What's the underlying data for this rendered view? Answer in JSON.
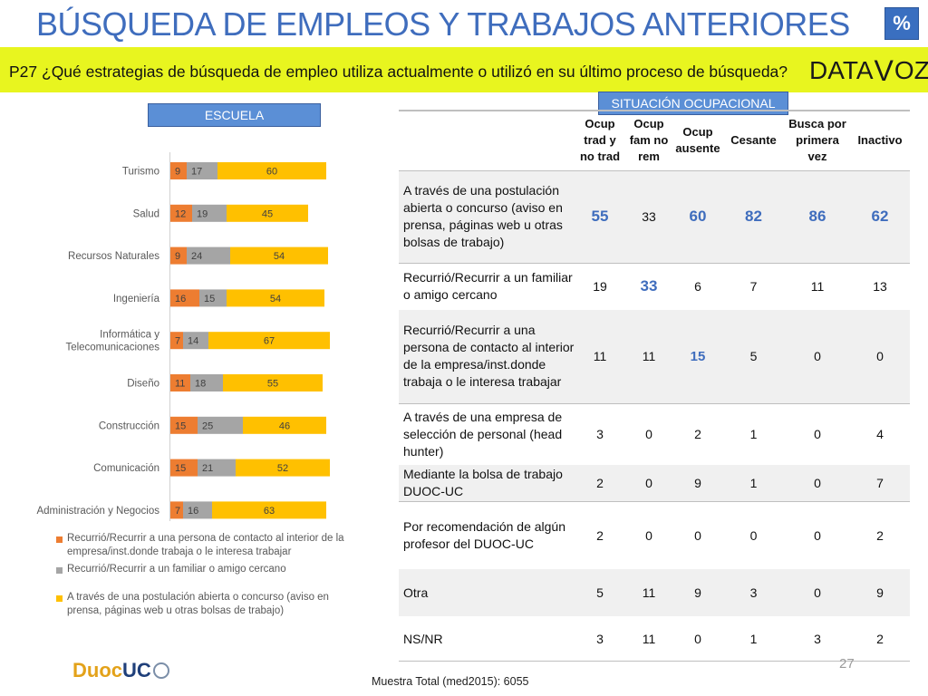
{
  "header": {
    "title": "BÚSQUEDA DE EMPLEOS Y TRABAJOS ANTERIORES",
    "badge": "%",
    "question": "P27 ¿Qué estrategias de búsqueda de empleo utiliza actualmente o utilizó en su último proceso de búsqueda?",
    "logo_left": "DATA",
    "logo_v": "V",
    "logo_right": "OZ"
  },
  "sections": {
    "escuela": "ESCUELA",
    "situacion": "SITUACIÓN OCUPACIONAL"
  },
  "colors": {
    "contacto": "#ed7d31",
    "familiar": "#a5a5a5",
    "postulacion": "#ffc000"
  },
  "chart_data": {
    "type": "bar",
    "orientation": "horizontal",
    "stacked": true,
    "categories": [
      "Turismo",
      "Salud",
      "Recursos Naturales",
      "Ingeniería",
      "Informática y Telecomunicaciones",
      "Diseño",
      "Construcción",
      "Comunicación",
      "Administración y Negocios"
    ],
    "category_lines": [
      [
        "Turismo"
      ],
      [
        "Salud"
      ],
      [
        "Recursos Naturales"
      ],
      [
        "Ingeniería"
      ],
      [
        "Informática y",
        "Telecomunicaciones"
      ],
      [
        "Diseño"
      ],
      [
        "Construcción"
      ],
      [
        "Comunicación"
      ],
      [
        "Administración y Negocios"
      ]
    ],
    "series": [
      {
        "name": "Recurrió/Recurrir a  una persona de contacto al interior de la empresa/inst.donde trabaja o le interesa trabajar",
        "color": "#ed7d31",
        "values": [
          9,
          12,
          9,
          16,
          7,
          11,
          15,
          15,
          7
        ]
      },
      {
        "name": "Recurrió/Recurrir a un  familiar o amigo cercano",
        "color": "#a5a5a5",
        "values": [
          17,
          19,
          24,
          15,
          14,
          18,
          25,
          21,
          16
        ]
      },
      {
        "name": "A través de una postulación abierta o concurso (aviso en prensa, páginas web u otras bolsas de trabajo)",
        "color": "#ffc000",
        "values": [
          60,
          45,
          54,
          54,
          67,
          55,
          46,
          52,
          63
        ]
      }
    ],
    "legend_position": "bottom",
    "grid": false
  },
  "legend": {
    "items": [
      {
        "label": "Recurrió/Recurrir a  una persona de contacto al interior de la empresa/inst.donde trabaja o le interesa trabajar"
      },
      {
        "label": "Recurrió/Recurrir a un  familiar o amigo cercano"
      },
      {
        "label": "A través de una postulación abierta o concurso (aviso en prensa, páginas web u otras bolsas de trabajo)"
      }
    ]
  },
  "table": {
    "columns": [
      "Ocup trad y no trad",
      "Ocup fam no rem",
      "Ocup ausente",
      "Cesante",
      "Busca por primera vez",
      "Inactivo"
    ],
    "rows": [
      {
        "label": "A través de una postulación abierta o concurso (aviso en prensa, páginas web u otras bolsas de trabajo)",
        "values": [
          "55",
          "33",
          "60",
          "82",
          "86",
          "62"
        ]
      },
      {
        "label": "Recurrió/Recurrir a un familiar o amigo cercano",
        "values": [
          "19",
          "33",
          "6",
          "7",
          "11",
          "13"
        ]
      },
      {
        "label": "Recurrió/Recurrir a  una persona de contacto al interior de la empresa/inst.donde trabaja o le interesa trabajar",
        "values": [
          "11",
          "11",
          "15",
          "5",
          "0",
          "0"
        ]
      },
      {
        "label": "A través de una empresa de selección de personal (head hunter)",
        "values": [
          "3",
          "0",
          "2",
          "1",
          "0",
          "4"
        ]
      },
      {
        "label": "Mediante la bolsa de trabajo DUOC-UC",
        "values": [
          "2",
          "0",
          "9",
          "1",
          "0",
          "7"
        ]
      },
      {
        "label": "Por recomendación de algún profesor del DUOC-UC",
        "values": [
          "2",
          "0",
          "0",
          "0",
          "0",
          "2"
        ]
      },
      {
        "label": "Otra",
        "values": [
          "5",
          "11",
          "9",
          "3",
          "0",
          "9"
        ]
      },
      {
        "label": "NS/NR",
        "values": [
          "3",
          "11",
          "0",
          "1",
          "3",
          "2"
        ]
      }
    ]
  },
  "footer": {
    "page": "27",
    "sample": "Muestra Total (med2015): 6055",
    "logo_a": "Duoc",
    "logo_b": "UC"
  }
}
